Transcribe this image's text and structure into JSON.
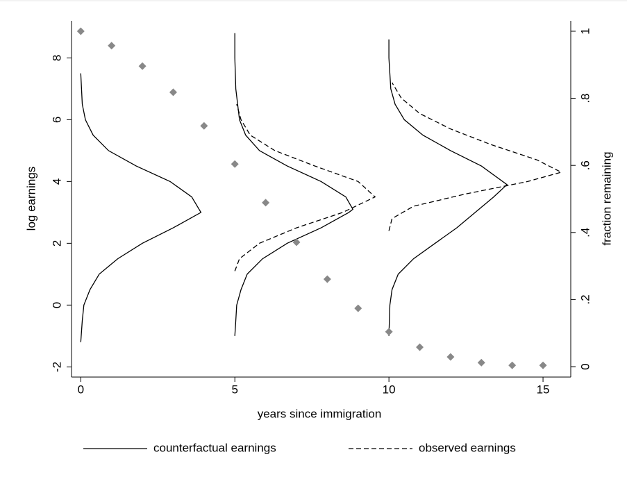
{
  "chart_data": {
    "type": "line",
    "xlabel": "years since immigration",
    "ylabel": "log earnings",
    "y2label": "fraction remaining",
    "xlim": [
      -0.3,
      15.9
    ],
    "ylim": [
      -2.33,
      9.2
    ],
    "y2lim": [
      -0.031,
      1.031
    ],
    "xticks": [
      0,
      5,
      10,
      15
    ],
    "yticks": [
      -2,
      0,
      2,
      4,
      6,
      8
    ],
    "y2ticks": [
      0,
      {
        "value": 0.2,
        "label": ".2"
      },
      {
        "value": 0.4,
        "label": ".4"
      },
      {
        "value": 0.6,
        "label": ".6"
      },
      {
        "value": 0.8,
        "label": ".8"
      },
      1
    ],
    "series": [
      {
        "name": "counterfactual earnings",
        "color": "#000000",
        "dash": "solid",
        "curves": [
          {
            "y": [
              -1.2,
              -0.5,
              0,
              0.5,
              1,
              1.5,
              2,
              2.5,
              3,
              3.5,
              4,
              4.5,
              5,
              5.5,
              6,
              6.5,
              7.5
            ],
            "x": [
              0.0,
              0.05,
              0.1,
              0.3,
              0.6,
              1.2,
              2.0,
              3.0,
              3.9,
              3.6,
              2.9,
              1.8,
              0.9,
              0.4,
              0.15,
              0.05,
              0.0
            ]
          },
          {
            "y": [
              -1,
              -0.5,
              0,
              0.5,
              1,
              1.5,
              2,
              2.5,
              3,
              3.1,
              3.5,
              4,
              4.5,
              5,
              5.5,
              6,
              7,
              8,
              8.8
            ],
            "x": [
              5.0,
              5.03,
              5.06,
              5.2,
              5.4,
              5.9,
              6.7,
              7.8,
              8.7,
              8.83,
              8.6,
              7.8,
              6.7,
              5.8,
              5.35,
              5.15,
              5.03,
              5.0,
              5.0
            ]
          },
          {
            "y": [
              -1,
              0,
              0.5,
              1,
              1.5,
              2,
              2.5,
              3,
              3.5,
              3.9,
              4.5,
              5,
              5.5,
              6,
              6.5,
              7,
              8,
              8.6
            ],
            "x": [
              10.0,
              10.03,
              10.1,
              10.3,
              10.8,
              11.5,
              12.2,
              12.8,
              13.4,
              13.83,
              13.0,
              12.0,
              11.1,
              10.5,
              10.2,
              10.06,
              10.0,
              10.0
            ]
          }
        ]
      },
      {
        "name": "observed earnings",
        "color": "#000000",
        "dash": "dashed",
        "curves": [
          {
            "y": [
              1.1,
              1.5,
              2,
              2.5,
              3,
              3.5,
              4,
              4.5,
              5,
              5.5,
              6,
              6.5
            ],
            "x": [
              5.0,
              5.15,
              5.8,
              7.0,
              8.5,
              9.55,
              9.0,
              7.6,
              6.3,
              5.5,
              5.2,
              5.06
            ]
          },
          {
            "y": [
              2.4,
              2.8,
              3.2,
              3.6,
              4,
              4.3,
              4.7,
              5.2,
              5.7,
              6.2,
              6.7,
              7.2
            ],
            "x": [
              10.0,
              10.1,
              10.8,
              12.5,
              14.5,
              15.59,
              14.8,
              13.3,
              12.0,
              11.0,
              10.4,
              10.1
            ]
          }
        ]
      }
    ],
    "scatter": {
      "color": "#888888",
      "axis": "y2",
      "x": [
        0,
        1,
        2,
        3,
        4,
        5,
        6,
        7,
        8,
        9,
        10,
        11,
        12,
        13,
        14,
        15
      ],
      "values": [
        1.0,
        0.957,
        0.896,
        0.818,
        0.718,
        0.604,
        0.489,
        0.371,
        0.261,
        0.174,
        0.104,
        0.058,
        0.029,
        0.012,
        0.004,
        0.004
      ]
    }
  }
}
